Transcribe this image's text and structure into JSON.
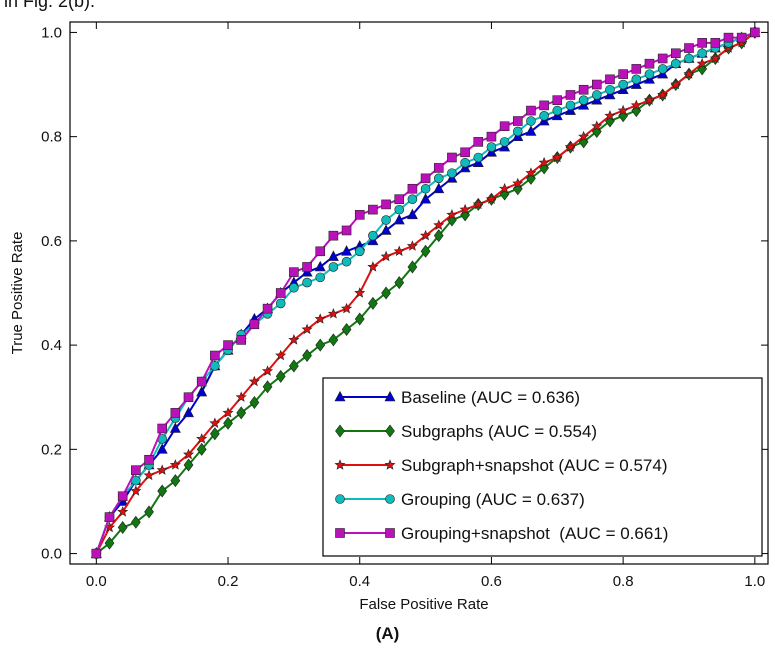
{
  "page": {
    "top_caption": "in Fig. 2(b).",
    "panel_label": "(A)"
  },
  "chart_data": {
    "type": "line",
    "title": "",
    "xlabel": "False Positive Rate",
    "ylabel": "True Positive Rate",
    "xlim": [
      -0.04,
      1.02
    ],
    "ylim": [
      -0.02,
      1.02
    ],
    "x_ticks": [
      "0.0",
      "0.2",
      "0.4",
      "0.6",
      "0.8",
      "1.0"
    ],
    "y_ticks": [
      "0.0",
      "0.2",
      "0.4",
      "0.6",
      "0.8",
      "1.0"
    ],
    "grid": false,
    "legend_position": "lower-right",
    "series": [
      {
        "name": "Baseline (AUC = 0.636)",
        "color": "#0000cc",
        "marker": "triangle",
        "points": [
          [
            0,
            0
          ],
          [
            0.02,
            0.07
          ],
          [
            0.04,
            0.1
          ],
          [
            0.06,
            0.14
          ],
          [
            0.08,
            0.17
          ],
          [
            0.1,
            0.2
          ],
          [
            0.12,
            0.24
          ],
          [
            0.14,
            0.27
          ],
          [
            0.16,
            0.31
          ],
          [
            0.18,
            0.36
          ],
          [
            0.2,
            0.39
          ],
          [
            0.22,
            0.42
          ],
          [
            0.24,
            0.45
          ],
          [
            0.26,
            0.47
          ],
          [
            0.28,
            0.5
          ],
          [
            0.3,
            0.52
          ],
          [
            0.32,
            0.54
          ],
          [
            0.34,
            0.55
          ],
          [
            0.36,
            0.57
          ],
          [
            0.38,
            0.58
          ],
          [
            0.4,
            0.59
          ],
          [
            0.42,
            0.6
          ],
          [
            0.44,
            0.62
          ],
          [
            0.46,
            0.64
          ],
          [
            0.48,
            0.65
          ],
          [
            0.5,
            0.68
          ],
          [
            0.52,
            0.7
          ],
          [
            0.54,
            0.72
          ],
          [
            0.56,
            0.74
          ],
          [
            0.58,
            0.75
          ],
          [
            0.6,
            0.77
          ],
          [
            0.62,
            0.78
          ],
          [
            0.64,
            0.8
          ],
          [
            0.66,
            0.81
          ],
          [
            0.68,
            0.83
          ],
          [
            0.7,
            0.84
          ],
          [
            0.72,
            0.85
          ],
          [
            0.74,
            0.86
          ],
          [
            0.76,
            0.87
          ],
          [
            0.78,
            0.88
          ],
          [
            0.8,
            0.89
          ],
          [
            0.82,
            0.9
          ],
          [
            0.84,
            0.91
          ],
          [
            0.86,
            0.92
          ],
          [
            0.88,
            0.94
          ],
          [
            0.9,
            0.95
          ],
          [
            0.92,
            0.96
          ],
          [
            0.94,
            0.97
          ],
          [
            0.96,
            0.98
          ],
          [
            0.98,
            0.99
          ],
          [
            1.0,
            1.0
          ]
        ]
      },
      {
        "name": "Subgraphs (AUC = 0.554)",
        "color": "#117711",
        "marker": "diamond",
        "points": [
          [
            0,
            0
          ],
          [
            0.02,
            0.02
          ],
          [
            0.04,
            0.05
          ],
          [
            0.06,
            0.06
          ],
          [
            0.08,
            0.08
          ],
          [
            0.1,
            0.12
          ],
          [
            0.12,
            0.14
          ],
          [
            0.14,
            0.17
          ],
          [
            0.16,
            0.2
          ],
          [
            0.18,
            0.23
          ],
          [
            0.2,
            0.25
          ],
          [
            0.22,
            0.27
          ],
          [
            0.24,
            0.29
          ],
          [
            0.26,
            0.32
          ],
          [
            0.28,
            0.34
          ],
          [
            0.3,
            0.36
          ],
          [
            0.32,
            0.38
          ],
          [
            0.34,
            0.4
          ],
          [
            0.36,
            0.41
          ],
          [
            0.38,
            0.43
          ],
          [
            0.4,
            0.45
          ],
          [
            0.42,
            0.48
          ],
          [
            0.44,
            0.5
          ],
          [
            0.46,
            0.52
          ],
          [
            0.48,
            0.55
          ],
          [
            0.5,
            0.58
          ],
          [
            0.52,
            0.61
          ],
          [
            0.54,
            0.64
          ],
          [
            0.56,
            0.65
          ],
          [
            0.58,
            0.67
          ],
          [
            0.6,
            0.68
          ],
          [
            0.62,
            0.69
          ],
          [
            0.64,
            0.7
          ],
          [
            0.66,
            0.72
          ],
          [
            0.68,
            0.74
          ],
          [
            0.7,
            0.76
          ],
          [
            0.72,
            0.78
          ],
          [
            0.74,
            0.79
          ],
          [
            0.76,
            0.81
          ],
          [
            0.78,
            0.83
          ],
          [
            0.8,
            0.84
          ],
          [
            0.82,
            0.85
          ],
          [
            0.84,
            0.87
          ],
          [
            0.86,
            0.88
          ],
          [
            0.88,
            0.9
          ],
          [
            0.9,
            0.92
          ],
          [
            0.92,
            0.93
          ],
          [
            0.94,
            0.95
          ],
          [
            0.96,
            0.97
          ],
          [
            0.98,
            0.98
          ],
          [
            1.0,
            1.0
          ]
        ]
      },
      {
        "name": "Subgraph+snapshot (AUC = 0.574)",
        "color": "#dd1111",
        "marker": "star",
        "points": [
          [
            0,
            0
          ],
          [
            0.02,
            0.05
          ],
          [
            0.04,
            0.08
          ],
          [
            0.06,
            0.12
          ],
          [
            0.08,
            0.15
          ],
          [
            0.1,
            0.16
          ],
          [
            0.12,
            0.17
          ],
          [
            0.14,
            0.19
          ],
          [
            0.16,
            0.22
          ],
          [
            0.18,
            0.25
          ],
          [
            0.2,
            0.27
          ],
          [
            0.22,
            0.3
          ],
          [
            0.24,
            0.33
          ],
          [
            0.26,
            0.35
          ],
          [
            0.28,
            0.38
          ],
          [
            0.3,
            0.41
          ],
          [
            0.32,
            0.43
          ],
          [
            0.34,
            0.45
          ],
          [
            0.36,
            0.46
          ],
          [
            0.38,
            0.47
          ],
          [
            0.4,
            0.5
          ],
          [
            0.42,
            0.55
          ],
          [
            0.44,
            0.57
          ],
          [
            0.46,
            0.58
          ],
          [
            0.48,
            0.59
          ],
          [
            0.5,
            0.61
          ],
          [
            0.52,
            0.63
          ],
          [
            0.54,
            0.65
          ],
          [
            0.56,
            0.66
          ],
          [
            0.58,
            0.67
          ],
          [
            0.6,
            0.68
          ],
          [
            0.62,
            0.7
          ],
          [
            0.64,
            0.71
          ],
          [
            0.66,
            0.73
          ],
          [
            0.68,
            0.75
          ],
          [
            0.7,
            0.76
          ],
          [
            0.72,
            0.78
          ],
          [
            0.74,
            0.8
          ],
          [
            0.76,
            0.82
          ],
          [
            0.78,
            0.84
          ],
          [
            0.8,
            0.85
          ],
          [
            0.82,
            0.86
          ],
          [
            0.84,
            0.87
          ],
          [
            0.86,
            0.88
          ],
          [
            0.88,
            0.9
          ],
          [
            0.9,
            0.92
          ],
          [
            0.92,
            0.94
          ],
          [
            0.94,
            0.95
          ],
          [
            0.96,
            0.97
          ],
          [
            0.98,
            0.98
          ],
          [
            1.0,
            1.0
          ]
        ]
      },
      {
        "name": "Grouping (AUC = 0.637)",
        "color": "#11bbbb",
        "marker": "circle",
        "points": [
          [
            0,
            0
          ],
          [
            0.02,
            0.07
          ],
          [
            0.04,
            0.11
          ],
          [
            0.06,
            0.14
          ],
          [
            0.08,
            0.17
          ],
          [
            0.1,
            0.22
          ],
          [
            0.12,
            0.26
          ],
          [
            0.14,
            0.3
          ],
          [
            0.16,
            0.33
          ],
          [
            0.18,
            0.36
          ],
          [
            0.2,
            0.39
          ],
          [
            0.22,
            0.42
          ],
          [
            0.24,
            0.44
          ],
          [
            0.26,
            0.46
          ],
          [
            0.28,
            0.48
          ],
          [
            0.3,
            0.51
          ],
          [
            0.32,
            0.52
          ],
          [
            0.34,
            0.53
          ],
          [
            0.36,
            0.55
          ],
          [
            0.38,
            0.56
          ],
          [
            0.4,
            0.58
          ],
          [
            0.42,
            0.61
          ],
          [
            0.44,
            0.64
          ],
          [
            0.46,
            0.66
          ],
          [
            0.48,
            0.68
          ],
          [
            0.5,
            0.7
          ],
          [
            0.52,
            0.72
          ],
          [
            0.54,
            0.73
          ],
          [
            0.56,
            0.75
          ],
          [
            0.58,
            0.76
          ],
          [
            0.6,
            0.78
          ],
          [
            0.62,
            0.79
          ],
          [
            0.64,
            0.81
          ],
          [
            0.66,
            0.83
          ],
          [
            0.68,
            0.84
          ],
          [
            0.7,
            0.85
          ],
          [
            0.72,
            0.86
          ],
          [
            0.74,
            0.87
          ],
          [
            0.76,
            0.88
          ],
          [
            0.78,
            0.89
          ],
          [
            0.8,
            0.9
          ],
          [
            0.82,
            0.91
          ],
          [
            0.84,
            0.92
          ],
          [
            0.86,
            0.93
          ],
          [
            0.88,
            0.94
          ],
          [
            0.9,
            0.95
          ],
          [
            0.92,
            0.96
          ],
          [
            0.94,
            0.97
          ],
          [
            0.96,
            0.98
          ],
          [
            0.98,
            0.99
          ],
          [
            1.0,
            1.0
          ]
        ]
      },
      {
        "name": "Grouping+snapshot  (AUC = 0.661)",
        "color": "#bb11bb",
        "marker": "square",
        "points": [
          [
            0,
            0
          ],
          [
            0.02,
            0.07
          ],
          [
            0.04,
            0.11
          ],
          [
            0.06,
            0.16
          ],
          [
            0.08,
            0.18
          ],
          [
            0.1,
            0.24
          ],
          [
            0.12,
            0.27
          ],
          [
            0.14,
            0.3
          ],
          [
            0.16,
            0.33
          ],
          [
            0.18,
            0.38
          ],
          [
            0.2,
            0.4
          ],
          [
            0.22,
            0.41
          ],
          [
            0.24,
            0.44
          ],
          [
            0.26,
            0.47
          ],
          [
            0.28,
            0.5
          ],
          [
            0.3,
            0.54
          ],
          [
            0.32,
            0.55
          ],
          [
            0.34,
            0.58
          ],
          [
            0.36,
            0.61
          ],
          [
            0.38,
            0.62
          ],
          [
            0.4,
            0.65
          ],
          [
            0.42,
            0.66
          ],
          [
            0.44,
            0.67
          ],
          [
            0.46,
            0.68
          ],
          [
            0.48,
            0.7
          ],
          [
            0.5,
            0.72
          ],
          [
            0.52,
            0.74
          ],
          [
            0.54,
            0.76
          ],
          [
            0.56,
            0.77
          ],
          [
            0.58,
            0.79
          ],
          [
            0.6,
            0.8
          ],
          [
            0.62,
            0.82
          ],
          [
            0.64,
            0.83
          ],
          [
            0.66,
            0.85
          ],
          [
            0.68,
            0.86
          ],
          [
            0.7,
            0.87
          ],
          [
            0.72,
            0.88
          ],
          [
            0.74,
            0.89
          ],
          [
            0.76,
            0.9
          ],
          [
            0.78,
            0.91
          ],
          [
            0.8,
            0.92
          ],
          [
            0.82,
            0.93
          ],
          [
            0.84,
            0.94
          ],
          [
            0.86,
            0.95
          ],
          [
            0.88,
            0.96
          ],
          [
            0.9,
            0.97
          ],
          [
            0.92,
            0.98
          ],
          [
            0.94,
            0.98
          ],
          [
            0.96,
            0.99
          ],
          [
            0.98,
            0.99
          ],
          [
            1.0,
            1.0
          ]
        ]
      }
    ]
  }
}
